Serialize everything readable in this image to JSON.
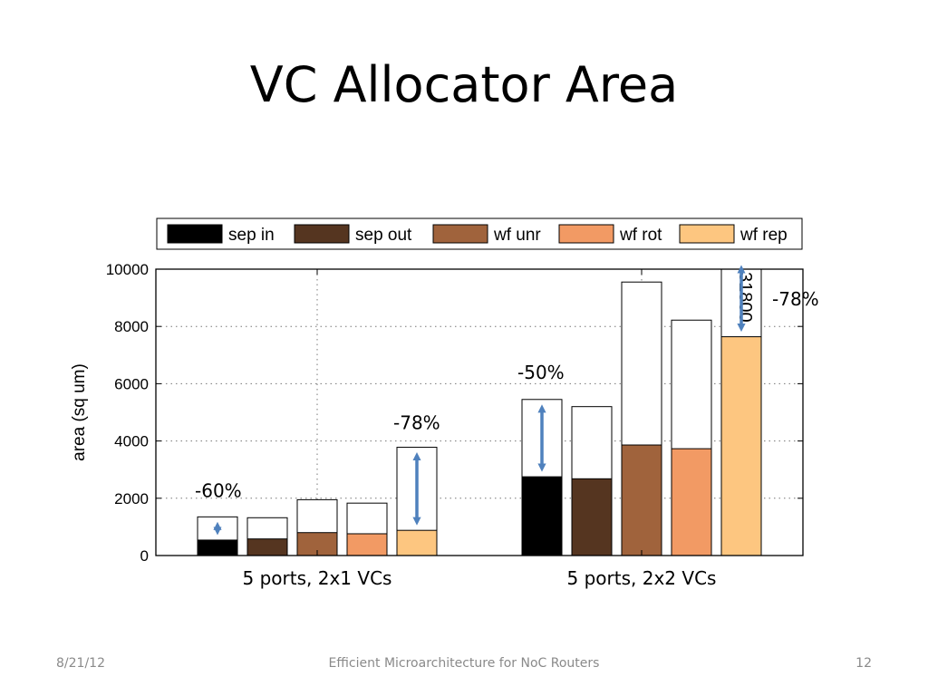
{
  "slide": {
    "title": "VC Allocator Area",
    "footer_date": "8/21/12",
    "footer_center": "Efficient Microarchitecture for NoC Routers",
    "page_number": "12"
  },
  "chart_data": {
    "type": "bar",
    "title": "",
    "xlabel": "",
    "ylabel": "area (sq um)",
    "ylim": [
      0,
      10000
    ],
    "yticks": [
      0,
      2000,
      4000,
      6000,
      8000,
      10000
    ],
    "grid": true,
    "legend_position": "top",
    "categories": [
      "5 ports, 2x1 VCs",
      "5 ports, 2x2 VCs"
    ],
    "series": [
      {
        "name": "sep in",
        "color": "#000000",
        "filled": [
          540,
          2750
        ],
        "total": [
          1350,
          5450
        ]
      },
      {
        "name": "sep out",
        "color": "#553520",
        "filled": [
          580,
          2680
        ],
        "total": [
          1320,
          5200
        ]
      },
      {
        "name": "wf unr",
        "color": "#a0633c",
        "filled": [
          800,
          3860
        ],
        "total": [
          1950,
          9550
        ]
      },
      {
        "name": "wf rot",
        "color": "#f29a64",
        "filled": [
          760,
          3730
        ],
        "total": [
          1830,
          8220
        ]
      },
      {
        "name": "wf rep",
        "color": "#fdc680",
        "filled": [
          880,
          7640
        ],
        "total": [
          3780,
          31800
        ]
      }
    ],
    "offscale_label": "31800",
    "annotations": [
      {
        "text": "-60%",
        "category": 0,
        "series": 0
      },
      {
        "text": "-78%",
        "category": 0,
        "series": 4
      },
      {
        "text": "-50%",
        "category": 1,
        "series": 0
      },
      {
        "text": "-78%",
        "category": 1,
        "series": 4
      }
    ],
    "arrow_color": "#4f81bd"
  }
}
